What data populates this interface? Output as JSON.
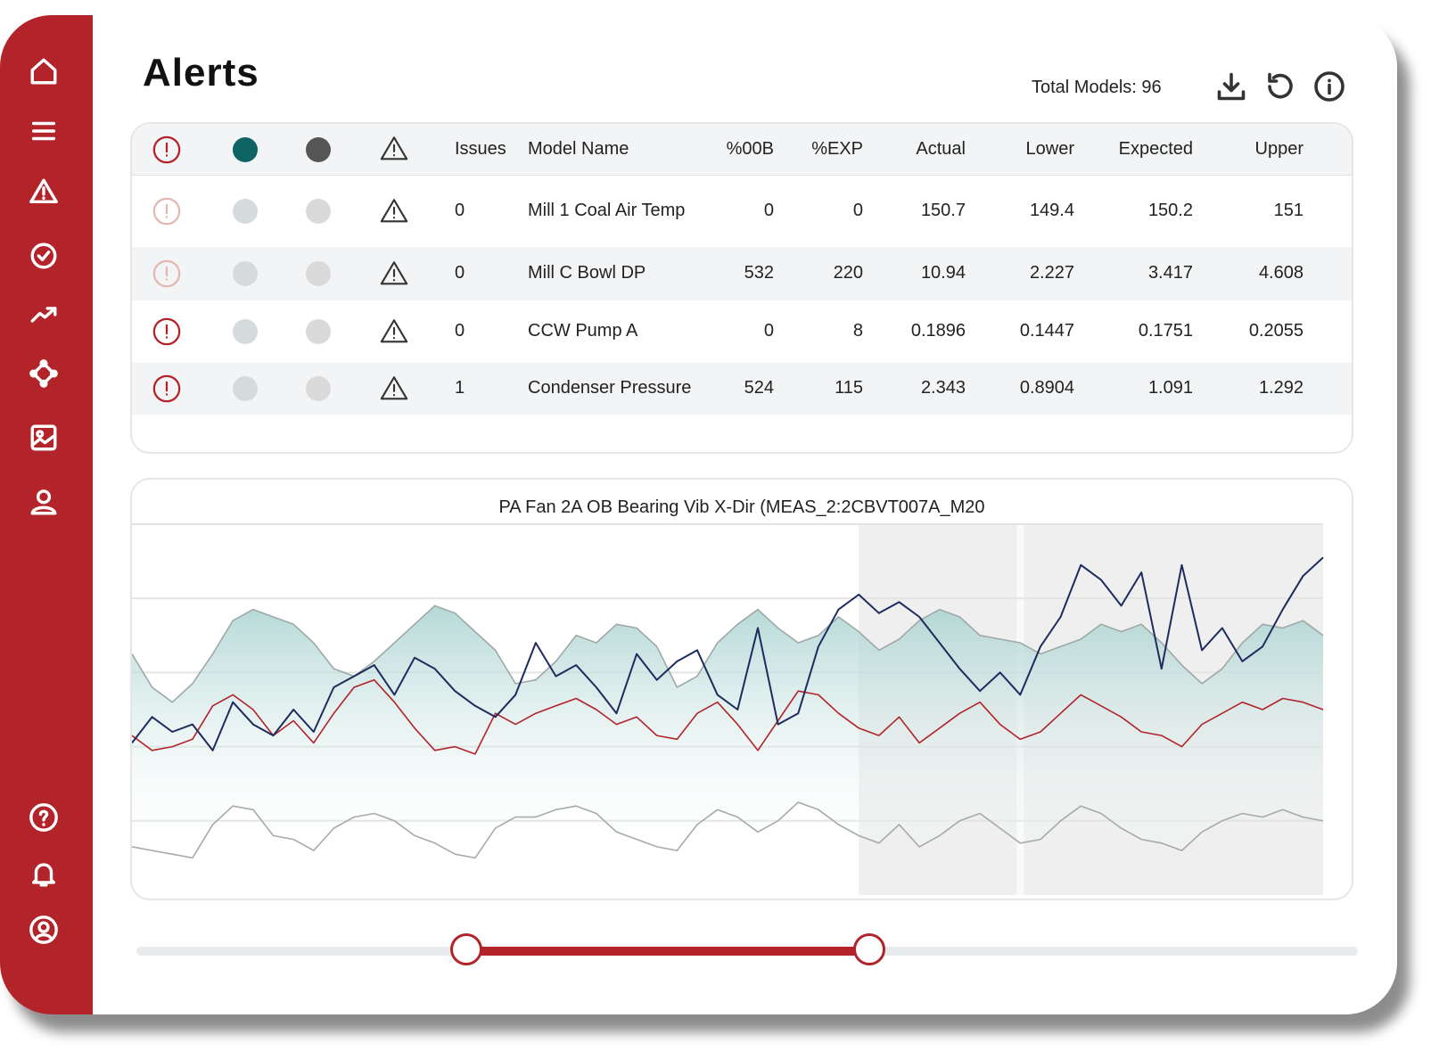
{
  "page": {
    "title": "Alerts",
    "total_models": "Total Models: 96"
  },
  "colors": {
    "brand": "#b3232a",
    "teal": "#0e6464",
    "navy": "#1e2b5e",
    "grey": "#555555"
  },
  "sidebar": {
    "top_items": [
      "home-icon",
      "menu-icon",
      "warning-icon",
      "check-circle-icon",
      "trend-icon",
      "network-icon",
      "image-icon",
      "user-icon"
    ],
    "bottom_items": [
      "help-icon",
      "bell-icon",
      "account-icon"
    ]
  },
  "toolbar": {
    "icons": [
      "download-icon",
      "refresh-icon",
      "info-icon"
    ]
  },
  "table": {
    "headers": {
      "issues": "Issues",
      "model": "Model Name",
      "oob": "%00B",
      "exp": "%EXP",
      "actual": "Actual",
      "lower": "Lower",
      "expected": "Expected",
      "upper": "Upper"
    },
    "rows": [
      {
        "alert_active": false,
        "issues": "0",
        "model": "Mill 1 Coal Air Temp",
        "oob": "0",
        "exp": "0",
        "actual": "150.7",
        "lower": "149.4",
        "expected": "150.2",
        "upper": "151"
      },
      {
        "alert_active": false,
        "issues": "0",
        "model": "Mill C Bowl DP",
        "oob": "532",
        "exp": "220",
        "actual": "10.94",
        "lower": "2.227",
        "expected": "3.417",
        "upper": "4.608"
      },
      {
        "alert_active": true,
        "issues": "0",
        "model": "CCW Pump A",
        "oob": "0",
        "exp": "8",
        "actual": "0.1896",
        "lower": "0.1447",
        "expected": "0.1751",
        "upper": "0.2055"
      },
      {
        "alert_active": true,
        "issues": "1",
        "model": "Condenser Pressure",
        "oob": "524",
        "exp": "115",
        "actual": "2.343",
        "lower": "0.8904",
        "expected": "1.091",
        "upper": "1.292"
      }
    ]
  },
  "chart_data": {
    "type": "line",
    "title": "PA Fan 2A OB Bearing Vib X-Dir (MEAS_2:2CBVT007A_M20",
    "xlabel": "",
    "ylabel": "",
    "x_count": 60,
    "ylim": [
      0,
      10
    ],
    "grid": true,
    "series": [
      {
        "role": "upper",
        "color": "#9fa8a8",
        "values": [
          6.5,
          5.6,
          5.2,
          5.7,
          6.5,
          7.4,
          7.7,
          7.5,
          7.3,
          6.8,
          6.1,
          5.9,
          6.3,
          6.8,
          7.3,
          7.8,
          7.6,
          7.1,
          6.6,
          5.7,
          5.8,
          6.3,
          7.0,
          6.8,
          7.3,
          7.2,
          6.7,
          5.6,
          5.9,
          6.8,
          7.3,
          7.7,
          7.2,
          6.8,
          7.0,
          7.5,
          7.1,
          6.6,
          6.9,
          7.4,
          7.7,
          7.5,
          7.0,
          6.9,
          6.8,
          6.5,
          6.7,
          6.9,
          7.3,
          7.1,
          7.3,
          6.8,
          6.2,
          5.7,
          6.1,
          6.8,
          7.3,
          7.2,
          7.4,
          7.0
        ]
      },
      {
        "role": "actual",
        "color": "#1e2b5e",
        "values": [
          4.1,
          4.8,
          4.4,
          4.6,
          3.9,
          5.2,
          4.6,
          4.3,
          5.0,
          4.4,
          5.6,
          5.9,
          6.2,
          5.4,
          6.4,
          6.1,
          5.5,
          5.1,
          4.8,
          5.4,
          6.8,
          5.9,
          6.2,
          5.6,
          4.9,
          6.5,
          5.8,
          6.3,
          6.6,
          5.4,
          5.0,
          7.2,
          4.6,
          4.9,
          6.7,
          7.7,
          8.1,
          7.6,
          7.9,
          7.5,
          6.8,
          6.1,
          5.5,
          6.0,
          5.4,
          6.7,
          7.5,
          8.9,
          8.5,
          7.8,
          8.7,
          6.1,
          8.9,
          6.6,
          7.2,
          6.3,
          6.7,
          7.7,
          8.6,
          9.1
        ]
      },
      {
        "role": "expected",
        "color": "#b3232a",
        "values": [
          4.3,
          3.9,
          4.0,
          4.2,
          5.1,
          5.4,
          5.0,
          4.3,
          4.7,
          4.1,
          4.9,
          5.6,
          5.8,
          5.2,
          4.5,
          3.9,
          4.0,
          3.8,
          4.9,
          4.6,
          4.9,
          5.1,
          5.3,
          5.0,
          4.6,
          4.8,
          4.3,
          4.2,
          4.9,
          5.2,
          4.6,
          3.9,
          4.7,
          5.5,
          5.4,
          4.9,
          4.5,
          4.3,
          4.8,
          4.1,
          4.5,
          4.9,
          5.2,
          4.6,
          4.2,
          4.4,
          4.9,
          5.4,
          5.1,
          4.8,
          4.4,
          4.3,
          4.0,
          4.6,
          4.9,
          5.2,
          5.0,
          5.3,
          5.2,
          5.0
        ]
      },
      {
        "role": "lower",
        "color": "#a5aaaa",
        "values": [
          1.3,
          1.2,
          1.1,
          1.0,
          1.9,
          2.4,
          2.3,
          1.6,
          1.5,
          1.2,
          1.8,
          2.1,
          2.2,
          2.0,
          1.6,
          1.4,
          1.1,
          1.0,
          1.8,
          2.1,
          2.1,
          2.3,
          2.4,
          2.2,
          1.7,
          1.5,
          1.3,
          1.2,
          1.9,
          2.3,
          2.1,
          1.7,
          2.0,
          2.5,
          2.3,
          1.9,
          1.6,
          1.4,
          1.9,
          1.3,
          1.6,
          2.0,
          2.2,
          1.8,
          1.4,
          1.5,
          2.0,
          2.4,
          2.2,
          1.8,
          1.5,
          1.4,
          1.2,
          1.7,
          2.0,
          2.2,
          2.1,
          2.3,
          2.1,
          2.0
        ]
      }
    ]
  },
  "range_slider": {
    "start": 0.27,
    "end": 0.6
  }
}
